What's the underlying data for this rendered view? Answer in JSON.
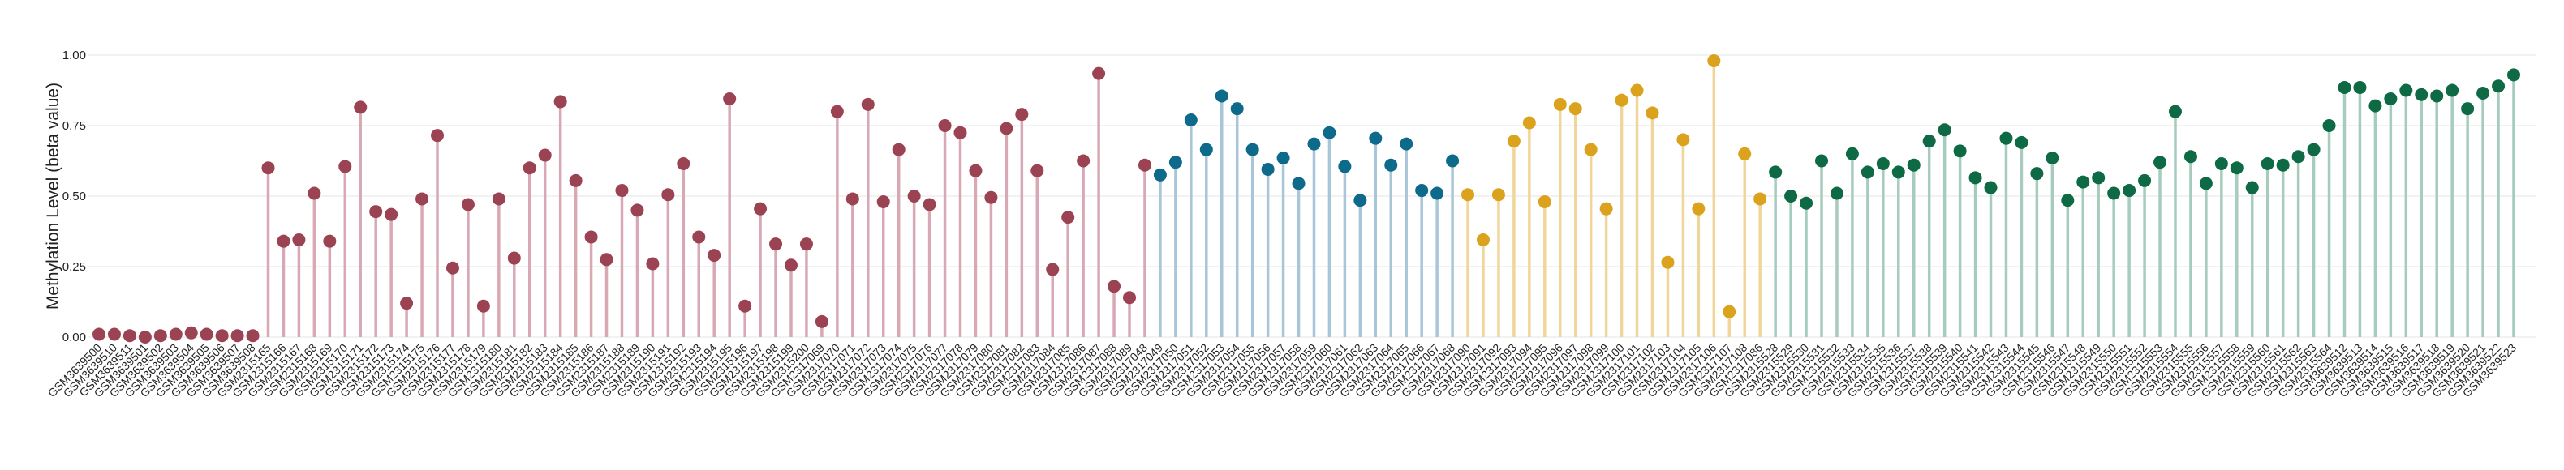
{
  "chart_data": {
    "type": "lollipop",
    "ylabel": "Methylation Level (beta value)",
    "xlabel": "",
    "ylim": [
      0,
      1
    ],
    "yticks": [
      "0.00",
      "0.25",
      "0.50",
      "0.75",
      "1.00"
    ],
    "grid": true,
    "legend": "none",
    "groups": [
      {
        "color": "#9b4353",
        "stem_color": "#d8a9b5"
      },
      {
        "color": "#0e6a8a",
        "stem_color": "#a9c5d8"
      },
      {
        "color": "#dba21d",
        "stem_color": "#f0d69a"
      },
      {
        "color": "#0e6a45",
        "stem_color": "#a6ccbd"
      }
    ],
    "points": [
      {
        "label": "GSM3639500",
        "value": 0.01,
        "group": 0
      },
      {
        "label": "GSM3639510",
        "value": 0.01,
        "group": 0
      },
      {
        "label": "GSM3639511",
        "value": 0.005,
        "group": 0
      },
      {
        "label": "GSM3639501",
        "value": 0.0,
        "group": 0
      },
      {
        "label": "GSM3639502",
        "value": 0.005,
        "group": 0
      },
      {
        "label": "GSM3639503",
        "value": 0.01,
        "group": 0
      },
      {
        "label": "GSM3639504",
        "value": 0.015,
        "group": 0
      },
      {
        "label": "GSM3639505",
        "value": 0.01,
        "group": 0
      },
      {
        "label": "GSM3639506",
        "value": 0.005,
        "group": 0
      },
      {
        "label": "GSM3639507",
        "value": 0.005,
        "group": 0
      },
      {
        "label": "GSM3639508",
        "value": 0.005,
        "group": 0
      },
      {
        "label": "GSM2315165",
        "value": 0.6,
        "group": 0
      },
      {
        "label": "GSM2315166",
        "value": 0.34,
        "group": 0
      },
      {
        "label": "GSM2315167",
        "value": 0.345,
        "group": 0
      },
      {
        "label": "GSM2315168",
        "value": 0.51,
        "group": 0
      },
      {
        "label": "GSM2315169",
        "value": 0.34,
        "group": 0
      },
      {
        "label": "GSM2315170",
        "value": 0.605,
        "group": 0
      },
      {
        "label": "GSM2315171",
        "value": 0.815,
        "group": 0
      },
      {
        "label": "GSM2315172",
        "value": 0.445,
        "group": 0
      },
      {
        "label": "GSM2315173",
        "value": 0.435,
        "group": 0
      },
      {
        "label": "GSM2315174",
        "value": 0.12,
        "group": 0
      },
      {
        "label": "GSM2315175",
        "value": 0.49,
        "group": 0
      },
      {
        "label": "GSM2315176",
        "value": 0.715,
        "group": 0
      },
      {
        "label": "GSM2315177",
        "value": 0.245,
        "group": 0
      },
      {
        "label": "GSM2315178",
        "value": 0.47,
        "group": 0
      },
      {
        "label": "GSM2315179",
        "value": 0.11,
        "group": 0
      },
      {
        "label": "GSM2315180",
        "value": 0.49,
        "group": 0
      },
      {
        "label": "GSM2315181",
        "value": 0.28,
        "group": 0
      },
      {
        "label": "GSM2315182",
        "value": 0.6,
        "group": 0
      },
      {
        "label": "GSM2315183",
        "value": 0.645,
        "group": 0
      },
      {
        "label": "GSM2315184",
        "value": 0.835,
        "group": 0
      },
      {
        "label": "GSM2315185",
        "value": 0.555,
        "group": 0
      },
      {
        "label": "GSM2315186",
        "value": 0.355,
        "group": 0
      },
      {
        "label": "GSM2315187",
        "value": 0.275,
        "group": 0
      },
      {
        "label": "GSM2315188",
        "value": 0.52,
        "group": 0
      },
      {
        "label": "GSM2315189",
        "value": 0.45,
        "group": 0
      },
      {
        "label": "GSM2315190",
        "value": 0.26,
        "group": 0
      },
      {
        "label": "GSM2315191",
        "value": 0.505,
        "group": 0
      },
      {
        "label": "GSM2315192",
        "value": 0.615,
        "group": 0
      },
      {
        "label": "GSM2315193",
        "value": 0.355,
        "group": 0
      },
      {
        "label": "GSM2315194",
        "value": 0.29,
        "group": 0
      },
      {
        "label": "GSM2315195",
        "value": 0.845,
        "group": 0
      },
      {
        "label": "GSM2315196",
        "value": 0.11,
        "group": 0
      },
      {
        "label": "GSM2315197",
        "value": 0.455,
        "group": 0
      },
      {
        "label": "GSM2315198",
        "value": 0.33,
        "group": 0
      },
      {
        "label": "GSM2315199",
        "value": 0.255,
        "group": 0
      },
      {
        "label": "GSM2315200",
        "value": 0.33,
        "group": 0
      },
      {
        "label": "GSM2317069",
        "value": 0.055,
        "group": 0
      },
      {
        "label": "GSM2317070",
        "value": 0.8,
        "group": 0
      },
      {
        "label": "GSM2317071",
        "value": 0.49,
        "group": 0
      },
      {
        "label": "GSM2317072",
        "value": 0.825,
        "group": 0
      },
      {
        "label": "GSM2317073",
        "value": 0.48,
        "group": 0
      },
      {
        "label": "GSM2317074",
        "value": 0.665,
        "group": 0
      },
      {
        "label": "GSM2317075",
        "value": 0.5,
        "group": 0
      },
      {
        "label": "GSM2317076",
        "value": 0.47,
        "group": 0
      },
      {
        "label": "GSM2317077",
        "value": 0.75,
        "group": 0
      },
      {
        "label": "GSM2317078",
        "value": 0.725,
        "group": 0
      },
      {
        "label": "GSM2317079",
        "value": 0.59,
        "group": 0
      },
      {
        "label": "GSM2317080",
        "value": 0.495,
        "group": 0
      },
      {
        "label": "GSM2317081",
        "value": 0.74,
        "group": 0
      },
      {
        "label": "GSM2317082",
        "value": 0.79,
        "group": 0
      },
      {
        "label": "GSM2317083",
        "value": 0.59,
        "group": 0
      },
      {
        "label": "GSM2317084",
        "value": 0.24,
        "group": 0
      },
      {
        "label": "GSM2317085",
        "value": 0.425,
        "group": 0
      },
      {
        "label": "GSM2317086",
        "value": 0.625,
        "group": 0
      },
      {
        "label": "GSM2317087",
        "value": 0.935,
        "group": 0
      },
      {
        "label": "GSM2317088",
        "value": 0.18,
        "group": 0
      },
      {
        "label": "GSM2317089",
        "value": 0.14,
        "group": 0
      },
      {
        "label": "GSM2317048",
        "value": 0.61,
        "group": 0
      },
      {
        "label": "GSM2317049",
        "value": 0.575,
        "group": 1
      },
      {
        "label": "GSM2317050",
        "value": 0.62,
        "group": 1
      },
      {
        "label": "GSM2317051",
        "value": 0.77,
        "group": 1
      },
      {
        "label": "GSM2317052",
        "value": 0.665,
        "group": 1
      },
      {
        "label": "GSM2317053",
        "value": 0.855,
        "group": 1
      },
      {
        "label": "GSM2317054",
        "value": 0.81,
        "group": 1
      },
      {
        "label": "GSM2317055",
        "value": 0.665,
        "group": 1
      },
      {
        "label": "GSM2317056",
        "value": 0.595,
        "group": 1
      },
      {
        "label": "GSM2317057",
        "value": 0.635,
        "group": 1
      },
      {
        "label": "GSM2317058",
        "value": 0.545,
        "group": 1
      },
      {
        "label": "GSM2317059",
        "value": 0.685,
        "group": 1
      },
      {
        "label": "GSM2317060",
        "value": 0.725,
        "group": 1
      },
      {
        "label": "GSM2317061",
        "value": 0.605,
        "group": 1
      },
      {
        "label": "GSM2317062",
        "value": 0.485,
        "group": 1
      },
      {
        "label": "GSM2317063",
        "value": 0.705,
        "group": 1
      },
      {
        "label": "GSM2317064",
        "value": 0.61,
        "group": 1
      },
      {
        "label": "GSM2317065",
        "value": 0.685,
        "group": 1
      },
      {
        "label": "GSM2317066",
        "value": 0.52,
        "group": 1
      },
      {
        "label": "GSM2317067",
        "value": 0.51,
        "group": 1
      },
      {
        "label": "GSM2317068",
        "value": 0.625,
        "group": 1
      },
      {
        "label": "GSM2317090",
        "value": 0.505,
        "group": 2
      },
      {
        "label": "GSM2317091",
        "value": 0.345,
        "group": 2
      },
      {
        "label": "GSM2317092",
        "value": 0.505,
        "group": 2
      },
      {
        "label": "GSM2317093",
        "value": 0.695,
        "group": 2
      },
      {
        "label": "GSM2317094",
        "value": 0.76,
        "group": 2
      },
      {
        "label": "GSM2317095",
        "value": 0.48,
        "group": 2
      },
      {
        "label": "GSM2317096",
        "value": 0.825,
        "group": 2
      },
      {
        "label": "GSM2317097",
        "value": 0.81,
        "group": 2
      },
      {
        "label": "GSM2317098",
        "value": 0.665,
        "group": 2
      },
      {
        "label": "GSM2317099",
        "value": 0.455,
        "group": 2
      },
      {
        "label": "GSM2317100",
        "value": 0.84,
        "group": 2
      },
      {
        "label": "GSM2317101",
        "value": 0.875,
        "group": 2
      },
      {
        "label": "GSM2317102",
        "value": 0.795,
        "group": 2
      },
      {
        "label": "GSM2317103",
        "value": 0.265,
        "group": 2
      },
      {
        "label": "GSM2317104",
        "value": 0.7,
        "group": 2
      },
      {
        "label": "GSM2317105",
        "value": 0.455,
        "group": 2
      },
      {
        "label": "GSM2317106",
        "value": 0.98,
        "group": 2
      },
      {
        "label": "GSM2317107",
        "value": 0.09,
        "group": 2
      },
      {
        "label": "GSM2317108",
        "value": 0.65,
        "group": 2
      },
      {
        "label": "GSM2317086",
        "value": 0.49,
        "group": 2
      },
      {
        "label": "GSM2315528",
        "value": 0.585,
        "group": 3
      },
      {
        "label": "GSM2315529",
        "value": 0.5,
        "group": 3
      },
      {
        "label": "GSM2315530",
        "value": 0.475,
        "group": 3
      },
      {
        "label": "GSM2315531",
        "value": 0.625,
        "group": 3
      },
      {
        "label": "GSM2315532",
        "value": 0.51,
        "group": 3
      },
      {
        "label": "GSM2315533",
        "value": 0.65,
        "group": 3
      },
      {
        "label": "GSM2315534",
        "value": 0.585,
        "group": 3
      },
      {
        "label": "GSM2315535",
        "value": 0.615,
        "group": 3
      },
      {
        "label": "GSM2315536",
        "value": 0.585,
        "group": 3
      },
      {
        "label": "GSM2315537",
        "value": 0.61,
        "group": 3
      },
      {
        "label": "GSM2315538",
        "value": 0.695,
        "group": 3
      },
      {
        "label": "GSM2315539",
        "value": 0.735,
        "group": 3
      },
      {
        "label": "GSM2315540",
        "value": 0.66,
        "group": 3
      },
      {
        "label": "GSM2315541",
        "value": 0.565,
        "group": 3
      },
      {
        "label": "GSM2315542",
        "value": 0.53,
        "group": 3
      },
      {
        "label": "GSM2315543",
        "value": 0.705,
        "group": 3
      },
      {
        "label": "GSM2315544",
        "value": 0.69,
        "group": 3
      },
      {
        "label": "GSM2315545",
        "value": 0.58,
        "group": 3
      },
      {
        "label": "GSM2315546",
        "value": 0.635,
        "group": 3
      },
      {
        "label": "GSM2315547",
        "value": 0.485,
        "group": 3
      },
      {
        "label": "GSM2315548",
        "value": 0.55,
        "group": 3
      },
      {
        "label": "GSM2315549",
        "value": 0.565,
        "group": 3
      },
      {
        "label": "GSM2315550",
        "value": 0.51,
        "group": 3
      },
      {
        "label": "GSM2315551",
        "value": 0.52,
        "group": 3
      },
      {
        "label": "GSM2315552",
        "value": 0.555,
        "group": 3
      },
      {
        "label": "GSM2315553",
        "value": 0.62,
        "group": 3
      },
      {
        "label": "GSM2315554",
        "value": 0.8,
        "group": 3
      },
      {
        "label": "GSM2315555",
        "value": 0.64,
        "group": 3
      },
      {
        "label": "GSM2315556",
        "value": 0.545,
        "group": 3
      },
      {
        "label": "GSM2315557",
        "value": 0.615,
        "group": 3
      },
      {
        "label": "GSM2315558",
        "value": 0.6,
        "group": 3
      },
      {
        "label": "GSM2315559",
        "value": 0.53,
        "group": 3
      },
      {
        "label": "GSM2315560",
        "value": 0.615,
        "group": 3
      },
      {
        "label": "GSM2315561",
        "value": 0.61,
        "group": 3
      },
      {
        "label": "GSM2315562",
        "value": 0.64,
        "group": 3
      },
      {
        "label": "GSM2315563",
        "value": 0.665,
        "group": 3
      },
      {
        "label": "GSM2315564",
        "value": 0.75,
        "group": 3
      },
      {
        "label": "GSM3639512",
        "value": 0.885,
        "group": 3
      },
      {
        "label": "GSM3639513",
        "value": 0.885,
        "group": 3
      },
      {
        "label": "GSM3639514",
        "value": 0.82,
        "group": 3
      },
      {
        "label": "GSM3639515",
        "value": 0.845,
        "group": 3
      },
      {
        "label": "GSM3639516",
        "value": 0.875,
        "group": 3
      },
      {
        "label": "GSM3639517",
        "value": 0.86,
        "group": 3
      },
      {
        "label": "GSM3639518",
        "value": 0.855,
        "group": 3
      },
      {
        "label": "GSM3639519",
        "value": 0.875,
        "group": 3
      },
      {
        "label": "GSM3639520",
        "value": 0.81,
        "group": 3
      },
      {
        "label": "GSM3639521",
        "value": 0.865,
        "group": 3
      },
      {
        "label": "GSM3639522",
        "value": 0.89,
        "group": 3
      },
      {
        "label": "GSM3639523",
        "value": 0.93,
        "group": 3
      }
    ]
  }
}
